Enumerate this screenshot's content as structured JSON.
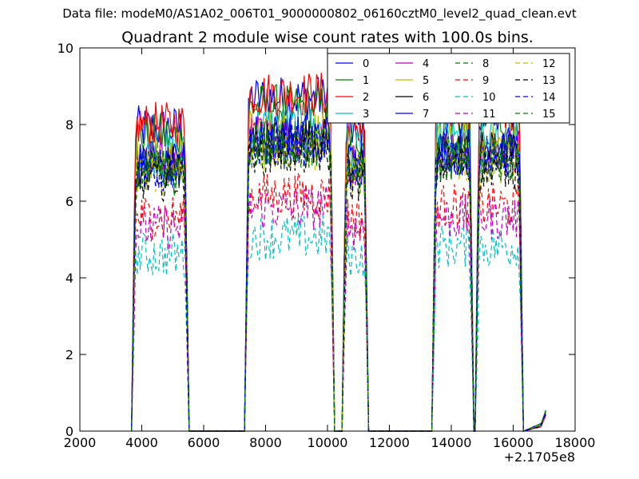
{
  "suptitle": "Data file: modeM0/AS1A02_006T01_9000000802_06160cztM0_level2_quad_clean.evt",
  "chart_data": {
    "type": "line",
    "title": "Quadrant 2 module wise count rates with 100.0s bins.",
    "xlabel": "",
    "ylabel": "",
    "x_offset_label": "+2.1705e8",
    "xlim": [
      2000,
      18000
    ],
    "ylim": [
      0,
      10
    ],
    "xticks": [
      2000,
      4000,
      6000,
      8000,
      10000,
      12000,
      14000,
      16000,
      18000
    ],
    "yticks": [
      0,
      2,
      4,
      6,
      8,
      10
    ],
    "grid": false,
    "legend_position": "top-right",
    "segments": [
      {
        "x_start": 3750,
        "x_end": 5450,
        "rate_scale": 1.0
      },
      {
        "x_start": 7400,
        "x_end": 10150,
        "rate_scale": 1.1
      },
      {
        "x_start": 10550,
        "x_end": 11250,
        "rate_scale": 1.0
      },
      {
        "x_start": 13450,
        "x_end": 14650,
        "rate_scale": 1.05
      },
      {
        "x_start": 14850,
        "x_end": 16250,
        "rate_scale": 1.05
      }
    ],
    "tail_x": [
      16900,
      17050
    ],
    "series": [
      {
        "name": "0",
        "style": "solid",
        "color": "#0000ff",
        "level": 7.9
      },
      {
        "name": "1",
        "style": "solid",
        "color": "#008000",
        "level": 7.7
      },
      {
        "name": "2",
        "style": "solid",
        "color": "#ff0000",
        "level": 8.0
      },
      {
        "name": "3",
        "style": "solid",
        "color": "#00bfbf",
        "level": 7.2
      },
      {
        "name": "4",
        "style": "solid",
        "color": "#bf00bf",
        "level": 7.0
      },
      {
        "name": "5",
        "style": "solid",
        "color": "#bfbf00",
        "level": 7.1
      },
      {
        "name": "6",
        "style": "solid",
        "color": "#000000",
        "level": 6.9
      },
      {
        "name": "7",
        "style": "solid",
        "color": "#0000ff",
        "level": 7.0
      },
      {
        "name": "8",
        "style": "dashed",
        "color": "#008000",
        "level": 6.8
      },
      {
        "name": "9",
        "style": "dashed",
        "color": "#ff0000",
        "level": 5.6
      },
      {
        "name": "10",
        "style": "dashed",
        "color": "#00bfbf",
        "level": 4.6
      },
      {
        "name": "11",
        "style": "dashed",
        "color": "#bf00bf",
        "level": 5.3
      },
      {
        "name": "12",
        "style": "dashed",
        "color": "#bfbf00",
        "level": 6.7
      },
      {
        "name": "13",
        "style": "dashed",
        "color": "#000000",
        "level": 6.6
      },
      {
        "name": "14",
        "style": "dashed",
        "color": "#0000ff",
        "level": 6.8
      },
      {
        "name": "15",
        "style": "dashed",
        "color": "#008000",
        "level": 6.7
      }
    ]
  }
}
